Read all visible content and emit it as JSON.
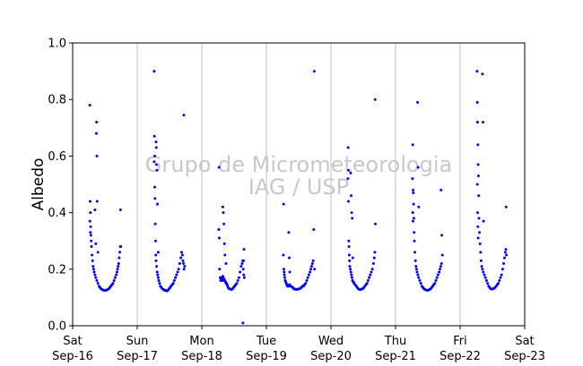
{
  "chart_data": {
    "type": "scatter",
    "title": "",
    "xlabel": "",
    "ylabel": "Albedo",
    "ylim": [
      0.0,
      1.0
    ],
    "yticks": [
      "0.0",
      "0.2",
      "0.4",
      "0.6",
      "0.8",
      "1.0"
    ],
    "xlim": [
      "2018-09-16",
      "2018-09-23"
    ],
    "xticks": [
      {
        "day": "Sat",
        "date": "Sep-16"
      },
      {
        "day": "Sun",
        "date": "Sep-17"
      },
      {
        "day": "Mon",
        "date": "Sep-18"
      },
      {
        "day": "Tue",
        "date": "Sep-19"
      },
      {
        "day": "Wed",
        "date": "Sep-20"
      },
      {
        "day": "Thu",
        "date": "Sep-21"
      },
      {
        "day": "Fri",
        "date": "Sep-22"
      },
      {
        "day": "Sat",
        "date": "Sep-23"
      }
    ],
    "grid": "vertical",
    "marker_color": "#0000ff",
    "watermark": [
      "Grupo de Micrometeorologia",
      "IAG / USP"
    ],
    "series": [
      {
        "points": [
          {
            "day": "2018-09-16",
            "hours": [
              6.4,
              6.5,
              6.6,
              6.7,
              6.8,
              6.9,
              7.0,
              7.2,
              7.4,
              7.6,
              7.8,
              8.0,
              8.3,
              8.6,
              9.0,
              9.4,
              9.8,
              10.2,
              10.6,
              11.0,
              11.4,
              11.8,
              12.2,
              12.6,
              13.0,
              13.4,
              13.8,
              14.2,
              14.6,
              15.0,
              15.4,
              15.8,
              16.2,
              16.5,
              16.7,
              16.9,
              17.1,
              17.3,
              17.5,
              17.7,
              8.8,
              8.9,
              9.0,
              9.1,
              8.6,
              8.3,
              9.4,
              17.8,
              17.9,
              6.4,
              6.6
            ],
            "albedo": [
              0.78,
              0.44,
              0.4,
              0.35,
              0.32,
              0.3,
              0.28,
              0.25,
              0.23,
              0.21,
              0.2,
              0.19,
              0.18,
              0.17,
              0.16,
              0.15,
              0.14,
              0.135,
              0.13,
              0.128,
              0.126,
              0.125,
              0.125,
              0.126,
              0.128,
              0.13,
              0.135,
              0.14,
              0.145,
              0.15,
              0.16,
              0.17,
              0.18,
              0.19,
              0.2,
              0.21,
              0.22,
              0.24,
              0.26,
              0.28,
              0.68,
              0.72,
              0.6,
              0.44,
              0.29,
              0.41,
              0.26,
              0.41,
              0.28,
              0.37,
              0.33
            ]
          },
          {
            "day": "2018-09-17",
            "hours": [
              6.3,
              6.4,
              6.5,
              6.6,
              6.7,
              6.8,
              6.9,
              7.0,
              7.2,
              7.4,
              7.6,
              7.8,
              8.0,
              8.3,
              8.6,
              9.0,
              9.4,
              9.8,
              10.2,
              10.6,
              11.0,
              11.4,
              11.8,
              12.2,
              12.6,
              13.0,
              13.4,
              13.8,
              14.2,
              14.6,
              15.0,
              15.4,
              15.8,
              16.2,
              16.5,
              16.8,
              17.0,
              17.2,
              17.4,
              17.6,
              6.3,
              6.5,
              7.0,
              7.1,
              7.2,
              7.3,
              7.5,
              7.8,
              17.3
            ],
            "albedo": [
              0.9,
              0.67,
              0.6,
              0.45,
              0.36,
              0.3,
              0.25,
              0.23,
              0.21,
              0.19,
              0.18,
              0.17,
              0.16,
              0.15,
              0.14,
              0.135,
              0.13,
              0.128,
              0.125,
              0.125,
              0.123,
              0.125,
              0.13,
              0.135,
              0.14,
              0.145,
              0.15,
              0.16,
              0.17,
              0.18,
              0.19,
              0.2,
              0.22,
              0.24,
              0.26,
              0.25,
              0.23,
              0.22,
              0.2,
              0.21,
              0.58,
              0.49,
              0.65,
              0.63,
              0.57,
              0.55,
              0.43,
              0.26,
              0.745
            ]
          },
          {
            "day": "2018-09-18",
            "hours": [
              6.4,
              6.6,
              6.8,
              7.0,
              7.2,
              7.4,
              7.6,
              7.8,
              8.0,
              8.2,
              8.4,
              8.6,
              8.8,
              9.0,
              9.2,
              9.4,
              9.6,
              9.8,
              10.2,
              10.6,
              11.0,
              11.4,
              11.8,
              12.2,
              12.6,
              13.0,
              13.4,
              13.8,
              14.2,
              14.6,
              15.0,
              15.2,
              15.4,
              15.6,
              15.8,
              7.8,
              8.0,
              8.2,
              8.4,
              6.3,
              6.5,
              8.6,
              9.0,
              15.7,
              15.3,
              15.5
            ],
            "albedo": [
              0.56,
              0.2,
              0.17,
              0.16,
              0.165,
              0.17,
              0.16,
              0.175,
              0.17,
              0.165,
              0.16,
              0.16,
              0.155,
              0.15,
              0.15,
              0.145,
              0.14,
              0.135,
              0.13,
              0.13,
              0.128,
              0.13,
              0.135,
              0.14,
              0.145,
              0.15,
              0.16,
              0.17,
              0.19,
              0.21,
              0.22,
              0.23,
              0.2,
              0.18,
              0.17,
              0.42,
              0.4,
              0.36,
              0.29,
              0.34,
              0.31,
              0.25,
              0.22,
              0.27,
              0.01,
              0.23
            ]
          },
          {
            "day": "2018-09-19",
            "hours": [
              6.4,
              6.5,
              6.6,
              6.7,
              6.8,
              7.0,
              7.2,
              7.4,
              7.6,
              7.8,
              8.0,
              8.3,
              8.6,
              9.0,
              9.4,
              9.8,
              10.2,
              10.6,
              11.0,
              11.4,
              11.8,
              12.2,
              12.6,
              13.0,
              13.4,
              13.8,
              14.2,
              14.6,
              15.0,
              15.4,
              15.8,
              16.2,
              16.5,
              16.8,
              17.1,
              17.4,
              6.3,
              8.3,
              8.5,
              8.7,
              17.6,
              17.8,
              17.9
            ],
            "albedo": [
              0.43,
              0.2,
              0.19,
              0.18,
              0.17,
              0.16,
              0.155,
              0.15,
              0.145,
              0.14,
              0.14,
              0.14,
              0.145,
              0.14,
              0.138,
              0.135,
              0.13,
              0.13,
              0.128,
              0.128,
              0.13,
              0.13,
              0.132,
              0.135,
              0.14,
              0.14,
              0.145,
              0.15,
              0.16,
              0.17,
              0.18,
              0.19,
              0.2,
              0.21,
              0.22,
              0.23,
              0.25,
              0.33,
              0.24,
              0.19,
              0.34,
              0.9,
              0.2
            ]
          },
          {
            "day": "2018-09-20",
            "hours": [
              6.4,
              6.5,
              6.6,
              6.7,
              6.8,
              6.9,
              7.0,
              7.2,
              7.4,
              7.6,
              7.8,
              8.0,
              8.3,
              8.6,
              9.0,
              9.4,
              9.8,
              10.2,
              10.6,
              11.0,
              11.4,
              11.8,
              12.2,
              12.6,
              13.0,
              13.4,
              13.8,
              14.2,
              14.6,
              15.0,
              15.4,
              15.8,
              16.1,
              16.3,
              6.3,
              6.5,
              7.3,
              7.5,
              7.7,
              7.9,
              8.1,
              16.4,
              16.5
            ],
            "albedo": [
              0.63,
              0.55,
              0.3,
              0.28,
              0.25,
              0.23,
              0.21,
              0.2,
              0.19,
              0.18,
              0.17,
              0.16,
              0.155,
              0.15,
              0.145,
              0.14,
              0.135,
              0.13,
              0.128,
              0.128,
              0.13,
              0.13,
              0.135,
              0.14,
              0.145,
              0.15,
              0.16,
              0.17,
              0.18,
              0.19,
              0.2,
              0.22,
              0.24,
              0.26,
              0.52,
              0.44,
              0.54,
              0.46,
              0.4,
              0.38,
              0.24,
              0.8,
              0.36
            ]
          },
          {
            "day": "2018-09-21",
            "hours": [
              6.4,
              6.5,
              6.6,
              6.7,
              6.8,
              6.9,
              7.0,
              7.2,
              7.4,
              7.6,
              7.8,
              8.0,
              8.3,
              8.6,
              9.0,
              9.4,
              9.8,
              10.2,
              10.6,
              11.0,
              11.4,
              11.8,
              12.2,
              12.6,
              13.0,
              13.4,
              13.8,
              14.2,
              14.6,
              15.0,
              15.4,
              15.8,
              16.2,
              16.5,
              16.8,
              17.1,
              6.3,
              6.4,
              6.5,
              8.2,
              8.4,
              8.6,
              16.9,
              17.2,
              17.4
            ],
            "albedo": [
              0.64,
              0.48,
              0.47,
              0.43,
              0.38,
              0.33,
              0.3,
              0.26,
              0.23,
              0.21,
              0.2,
              0.19,
              0.18,
              0.17,
              0.16,
              0.15,
              0.14,
              0.135,
              0.13,
              0.128,
              0.126,
              0.125,
              0.126,
              0.128,
              0.13,
              0.135,
              0.14,
              0.145,
              0.15,
              0.16,
              0.17,
              0.18,
              0.19,
              0.2,
              0.21,
              0.22,
              0.52,
              0.4,
              0.37,
              0.79,
              0.56,
              0.42,
              0.48,
              0.32,
              0.25
            ]
          },
          {
            "day": "2018-09-22",
            "hours": [
              6.3,
              6.4,
              6.5,
              6.6,
              6.7,
              6.8,
              6.9,
              7.0,
              7.2,
              7.4,
              7.6,
              7.8,
              8.0,
              8.3,
              8.6,
              9.0,
              9.4,
              9.8,
              10.2,
              10.6,
              11.0,
              11.4,
              11.8,
              12.2,
              12.6,
              13.0,
              13.4,
              13.8,
              14.2,
              14.6,
              15.0,
              15.4,
              15.8,
              16.2,
              16.5,
              16.8,
              17.0,
              17.2,
              6.4,
              6.5,
              6.6,
              6.7,
              8.3,
              8.5,
              8.7,
              17.1
            ],
            "albedo": [
              0.9,
              0.79,
              0.72,
              0.64,
              0.57,
              0.53,
              0.46,
              0.38,
              0.33,
              0.29,
              0.26,
              0.23,
              0.21,
              0.2,
              0.19,
              0.18,
              0.17,
              0.16,
              0.15,
              0.14,
              0.135,
              0.13,
              0.13,
              0.13,
              0.132,
              0.135,
              0.14,
              0.145,
              0.15,
              0.16,
              0.17,
              0.18,
              0.2,
              0.22,
              0.24,
              0.26,
              0.27,
              0.25,
              0.5,
              0.4,
              0.35,
              0.31,
              0.89,
              0.72,
              0.37,
              0.42
            ]
          }
        ]
      }
    ]
  }
}
